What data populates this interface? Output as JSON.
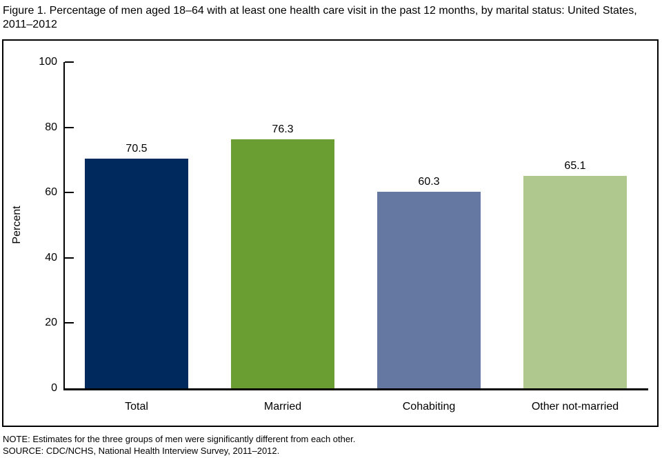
{
  "figure": {
    "title": "Figure 1. Percentage of men aged 18–64 with at least one health care visit in the past 12 months, by marital status: United States, 2011–2012",
    "note": "NOTE: Estimates for the three groups of men were significantly different from each other.",
    "source": "SOURCE: CDC/NCHS, National Health Interview Survey, 2011–2012."
  },
  "chart_data": {
    "type": "bar",
    "title": "Figure 1. Percentage of men aged 18–64 with at least one health care visit in the past 12 months, by marital status: United States, 2011–2012",
    "categories": [
      "Total",
      "Married",
      "Cohabiting",
      "Other not-married"
    ],
    "values": [
      70.5,
      76.3,
      60.3,
      65.1
    ],
    "value_labels": [
      "70.5",
      "76.3",
      "60.3",
      "65.1"
    ],
    "bar_colors": [
      "#002a5e",
      "#6b9e32",
      "#6478a2",
      "#afc88e"
    ],
    "xlabel": "",
    "ylabel": "Percent",
    "ylim": [
      0,
      100
    ],
    "yticks": [
      0,
      20,
      40,
      60,
      80,
      100
    ],
    "grid": false,
    "legend": false
  }
}
